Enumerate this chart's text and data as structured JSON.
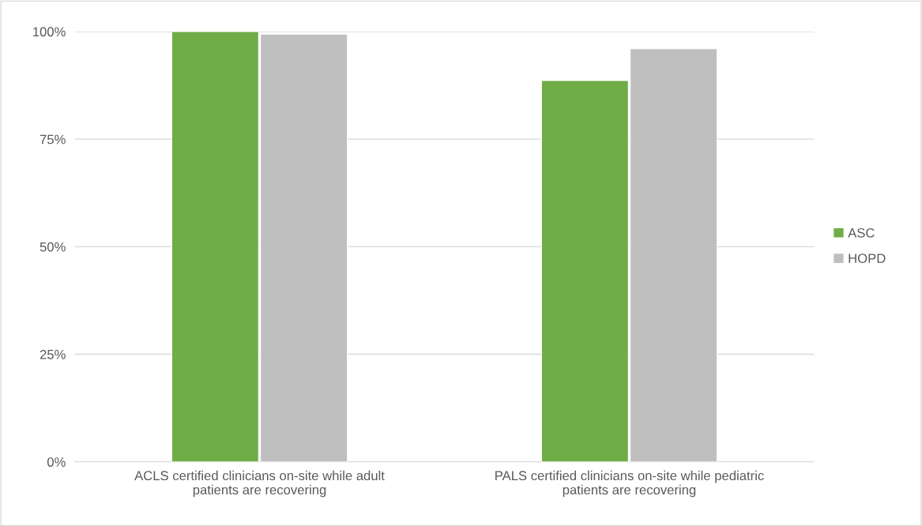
{
  "chart_data": {
    "type": "bar",
    "categories": [
      "ACLS certified clinicians on-site while adult\npatients are recovering",
      "PALS certified clinicians on-site while pediatric\npatients are recovering"
    ],
    "series": [
      {
        "name": "ASC",
        "color": "#70ad47",
        "values": [
          100,
          88.6
        ]
      },
      {
        "name": "HOPD",
        "color": "#bfbfbf",
        "values": [
          99.4,
          96
        ]
      }
    ],
    "ylim": [
      0,
      100
    ],
    "yticks": [
      {
        "value": 0,
        "label": "0%"
      },
      {
        "value": 25,
        "label": "25%"
      },
      {
        "value": 50,
        "label": "50%"
      },
      {
        "value": 75,
        "label": "75%"
      },
      {
        "value": 100,
        "label": "100%"
      }
    ],
    "grid": "y",
    "legend": "right"
  }
}
